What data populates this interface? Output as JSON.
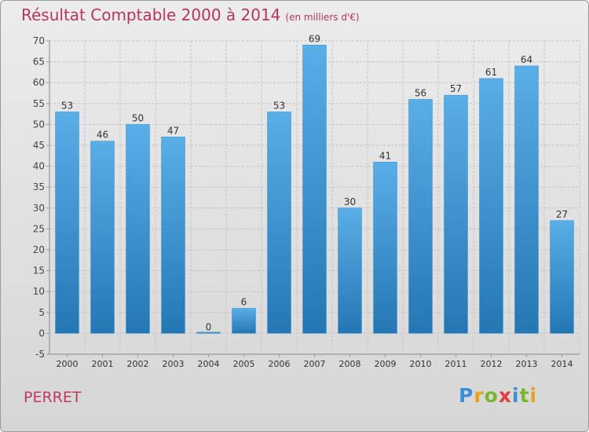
{
  "chart_data": {
    "type": "bar",
    "title": "Résultat Comptable 2000 à 2014",
    "subtitle": "(en milliers d'€)",
    "categories": [
      "2000",
      "2001",
      "2002",
      "2003",
      "2004",
      "2005",
      "2006",
      "2007",
      "2008",
      "2009",
      "2010",
      "2011",
      "2012",
      "2013",
      "2014"
    ],
    "values": [
      53,
      46,
      50,
      47,
      0,
      6,
      53,
      69,
      30,
      41,
      56,
      57,
      61,
      64,
      27
    ],
    "ylim": [
      -5,
      70
    ],
    "yticks": [
      -5,
      0,
      5,
      10,
      15,
      20,
      25,
      30,
      35,
      40,
      45,
      50,
      55,
      60,
      65,
      70
    ],
    "xlabel": "",
    "ylabel": "",
    "grid": true
  },
  "footer": {
    "commune": "PERRET",
    "logo_letters": [
      "P",
      "r",
      "o",
      "x",
      "i",
      "t",
      "i"
    ]
  },
  "colors": {
    "bar_light": "#5aaee6",
    "bar_dark": "#2577b4",
    "title": "#b5355f",
    "logo": [
      "#3a8fd8",
      "#e8a020",
      "#7ab631",
      "#e23c3c",
      "#3a8fd8",
      "#7ab631",
      "#e8a020"
    ]
  }
}
